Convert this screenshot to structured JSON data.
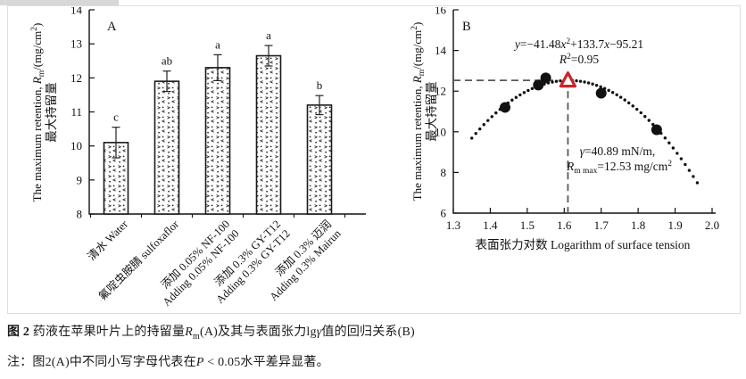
{
  "figure_caption": {
    "line1_parts": [
      {
        "t": "图 2",
        "b": true
      },
      {
        "t": " 药液在苹果叶片上的持留量"
      },
      {
        "t": "R",
        "i": true
      },
      {
        "t": "m",
        "sub": true
      },
      {
        "t": "(A)及其与表面张力lg"
      },
      {
        "t": "γ",
        "i": true
      },
      {
        "t": "值的回归关系(B)"
      }
    ],
    "line2_parts": [
      {
        "t": "注：图2(A)中不同小写字母代表在"
      },
      {
        "t": "P",
        "i": true
      },
      {
        "t": " < 0.05水平差异显著。"
      }
    ]
  },
  "chart_data": [
    {
      "type": "bar",
      "panel_label": "A",
      "ylabel_cn": "最大持留量",
      "ylabel_en_parts": [
        {
          "t": "The maximum retention, "
        },
        {
          "t": "R",
          "i": true
        },
        {
          "t": "m",
          "sub": true
        },
        {
          "t": "/(mg/cm"
        },
        {
          "t": "2",
          "sup": true
        },
        {
          "t": ")"
        }
      ],
      "ylim": [
        8,
        14
      ],
      "yticks": [
        "8",
        "9",
        "10",
        "11",
        "12",
        "13",
        "14"
      ],
      "categories": [
        [
          "清水 Water"
        ],
        [
          "氟啶虫胺腈 sulfoxaflor"
        ],
        [
          "添加 0.05% NF-100",
          "Adding 0.05% NF-100"
        ],
        [
          "添加 0.3% GY-T12",
          "Adding 0.3% GY-T12"
        ],
        [
          "添加 0.3% 迈润",
          "Adding 0.3% Mairun"
        ]
      ],
      "values": [
        10.1,
        11.9,
        12.3,
        12.65,
        11.2
      ],
      "errors": [
        0.45,
        0.3,
        0.38,
        0.3,
        0.28
      ],
      "sig_letters": [
        "c",
        "ab",
        "a",
        "a",
        "b"
      ],
      "bar_outline_color": "#1a1a1a",
      "grid": false
    },
    {
      "type": "scatter",
      "panel_label": "B",
      "ylabel_cn": "最大持留量",
      "ylabel_en_parts": [
        {
          "t": "The maximum retention, "
        },
        {
          "t": "R",
          "i": true
        },
        {
          "t": "m",
          "sub": true
        },
        {
          "t": "/(mg/cm"
        },
        {
          "t": "2",
          "sup": true
        },
        {
          "t": ")"
        }
      ],
      "xlabel": "表面张力对数 Logarithm of surface tension",
      "xlim": [
        1.3,
        2.0
      ],
      "xticks": [
        "1.3",
        "1.4",
        "1.5",
        "1.6",
        "1.7",
        "1.8",
        "1.9",
        "2.0"
      ],
      "ylim": [
        6,
        16
      ],
      "yticks": [
        "6",
        "8",
        "10",
        "12",
        "14",
        "16"
      ],
      "points": [
        [
          1.44,
          11.2
        ],
        [
          1.53,
          12.3
        ],
        [
          1.55,
          12.65
        ],
        [
          1.7,
          11.9
        ],
        [
          1.85,
          10.1
        ]
      ],
      "fit_curve": {
        "a": -41.48,
        "b": 133.7,
        "c": -95.21,
        "x_start": 1.35,
        "x_end": 1.96,
        "style": "dotted"
      },
      "equation_parts": [
        {
          "t": "y",
          "i": true
        },
        {
          "t": "=−41.48"
        },
        {
          "t": "x",
          "i": true
        },
        {
          "t": "2",
          "sup": true
        },
        {
          "t": "+133.7"
        },
        {
          "t": "x",
          "i": true
        },
        {
          "t": "−95.21"
        }
      ],
      "r2_parts": [
        {
          "t": "R",
          "i": true
        },
        {
          "t": "2",
          "sup": true
        },
        {
          "t": "=0.95"
        }
      ],
      "vertex": {
        "x": 1.61,
        "y": 12.53,
        "marker": "open-triangle",
        "color": "#c9252c"
      },
      "annotation_line1_parts": [
        {
          "t": "γ",
          "i": true
        },
        {
          "t": "=40.89 mN/m,"
        }
      ],
      "annotation_line2_parts": [
        {
          "t": "R",
          "i": true
        },
        {
          "t": "m max",
          "sub": true
        },
        {
          "t": "=12.53 mg/cm"
        },
        {
          "t": "2",
          "sup": true
        }
      ],
      "point_color": "#111111",
      "dash_color": "#595959",
      "grid": false,
      "legend": "none"
    }
  ]
}
